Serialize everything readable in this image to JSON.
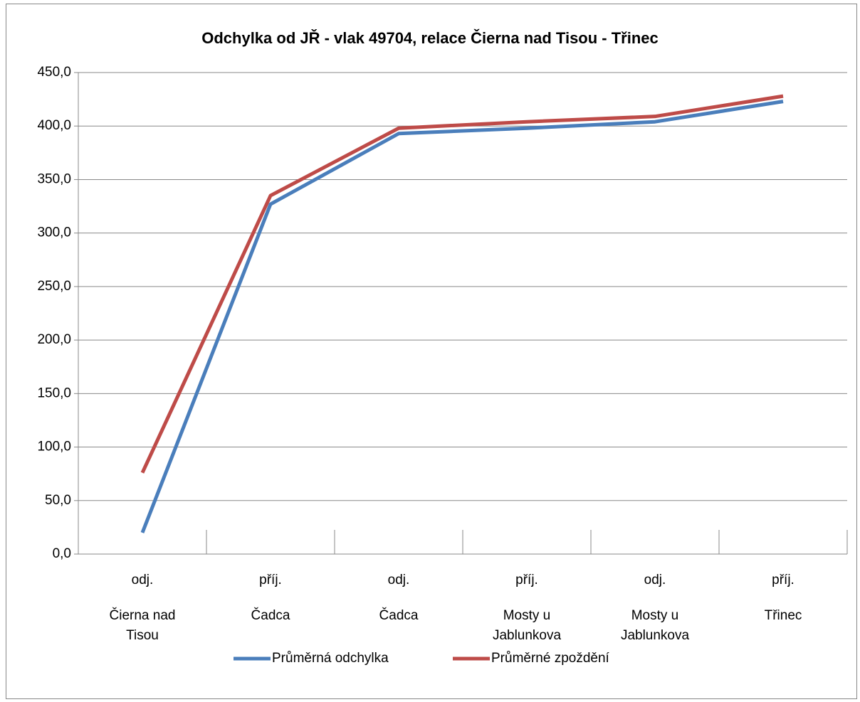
{
  "chart_data": {
    "type": "line",
    "title": "Odchylka od JŘ - vlak 49704, relace Čierna nad Tisou - Třinec",
    "categories": [
      [
        "odj.",
        "Čierna nad Tisou"
      ],
      [
        "příj.",
        "Čadca"
      ],
      [
        "odj.",
        "Čadca"
      ],
      [
        "příj.",
        "Mosty u Jablunkova"
      ],
      [
        "odj.",
        "Mosty u Jablunkova"
      ],
      [
        "příj.",
        "Třinec"
      ]
    ],
    "series": [
      {
        "name": "Průměrná odchylka",
        "color": "#4a7ebb",
        "values": [
          20,
          327,
          393,
          398,
          404,
          423
        ]
      },
      {
        "name": "Průměrné zpoždění",
        "color": "#be4b48",
        "values": [
          76,
          335,
          398,
          404,
          409,
          428
        ]
      }
    ],
    "ylim": [
      0,
      450
    ],
    "yticks": [
      {
        "value": 0,
        "label": "0,0"
      },
      {
        "value": 50,
        "label": "50,0"
      },
      {
        "value": 100,
        "label": "100,0"
      },
      {
        "value": 150,
        "label": "150,0"
      },
      {
        "value": 200,
        "label": "200,0"
      },
      {
        "value": 250,
        "label": "250,0"
      },
      {
        "value": 300,
        "label": "300,0"
      },
      {
        "value": 350,
        "label": "350,0"
      },
      {
        "value": 400,
        "label": "400,0"
      },
      {
        "value": 450,
        "label": "450,0"
      }
    ],
    "grid": true,
    "legend": "bottom"
  }
}
